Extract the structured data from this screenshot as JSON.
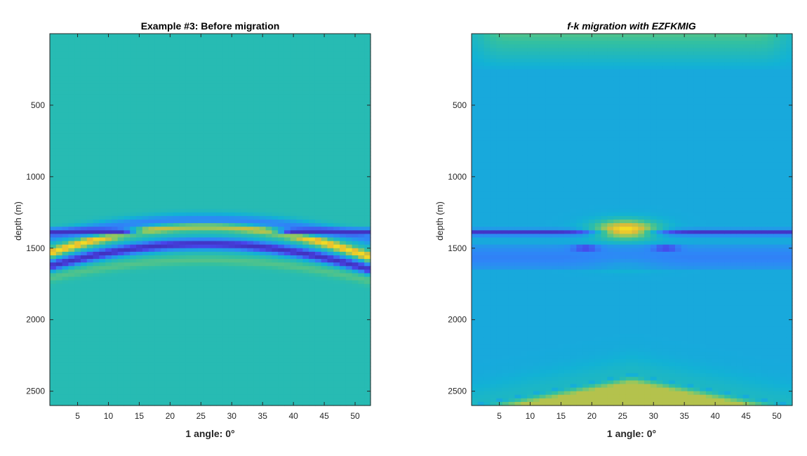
{
  "figure": {
    "background": "#ffffff",
    "colormap": "parula",
    "colormap_stops": [
      "#3e26a8",
      "#4746eb",
      "#2e87f7",
      "#12b2d5",
      "#33c0a0",
      "#8ec862",
      "#e3ba34",
      "#f9e61e"
    ]
  },
  "chart_data": [
    {
      "type": "heatmap",
      "title": "Example #3: Before migration",
      "title_style": "bold",
      "xlabel": "1 angle: 0°",
      "ylabel": "depth (m)",
      "xlim": [
        0.5,
        52.5
      ],
      "ylim": [
        2600,
        0
      ],
      "y_reversed": true,
      "xticks": [
        5,
        10,
        15,
        20,
        25,
        30,
        35,
        40,
        45,
        50
      ],
      "yticks": [
        500,
        1000,
        1500,
        2000,
        2500
      ],
      "xtick_labels": [
        "5",
        "10",
        "15",
        "20",
        "25",
        "30",
        "35",
        "40",
        "45",
        "50"
      ],
      "ytick_labels": [
        "500",
        "1000",
        "1500",
        "2000",
        "2500"
      ],
      "grid": false,
      "legend": "none",
      "background_value": 0.52,
      "features": [
        {
          "kind": "hyperbola",
          "apex_x": 25.5,
          "apex_depth": 1340,
          "edge_depth": 1550,
          "value": 0.97,
          "width_m": 22
        },
        {
          "kind": "hyperbola",
          "apex_x": 25.5,
          "apex_depth": 1470,
          "edge_depth": 1640,
          "value": 0.05,
          "width_m": 28
        },
        {
          "kind": "hyperbola",
          "apex_x": 25.5,
          "apex_depth": 1300,
          "edge_depth": 1430,
          "value": 0.28,
          "width_m": 30
        },
        {
          "kind": "hyperbola",
          "apex_x": 25.5,
          "apex_depth": 1585,
          "edge_depth": 1720,
          "value": 0.62,
          "width_m": 25
        },
        {
          "kind": "flat_band",
          "depth": 1385,
          "x_ranges": [
            [
              0.5,
              12
            ],
            [
              40,
              52.5
            ]
          ],
          "value": 0.05,
          "width_m": 16
        }
      ]
    },
    {
      "type": "heatmap",
      "title": "f-k migration with EZFKMIG",
      "title_style": "bold-italic",
      "xlabel": "1 angle: 0°",
      "ylabel": "depth (m)",
      "xlim": [
        0.5,
        52.5
      ],
      "ylim": [
        2600,
        0
      ],
      "y_reversed": true,
      "xticks": [
        5,
        10,
        15,
        20,
        25,
        30,
        35,
        40,
        45,
        50
      ],
      "yticks": [
        500,
        1000,
        1500,
        2000,
        2500
      ],
      "xtick_labels": [
        "5",
        "10",
        "15",
        "20",
        "25",
        "30",
        "35",
        "40",
        "45",
        "50"
      ],
      "ytick_labels": [
        "500",
        "1000",
        "1500",
        "2000",
        "2500"
      ],
      "grid": false,
      "legend": "none",
      "background_value": 0.4,
      "features": [
        {
          "kind": "flat_band",
          "depth": 1390,
          "x_ranges": [
            [
              0.5,
              52.5
            ]
          ],
          "value": 0.06,
          "width_m": 14
        },
        {
          "kind": "blob",
          "x": 25.5,
          "depth": 1370,
          "rx": 3.5,
          "ry_m": 45,
          "value": 0.98
        },
        {
          "kind": "blob",
          "x": 25.5,
          "depth": 1600,
          "rx": 4,
          "ry_m": 35,
          "value": 0.55
        },
        {
          "kind": "band",
          "depth_top": 1480,
          "depth_bottom": 1650,
          "value": 0.22
        },
        {
          "kind": "blob",
          "x": 19,
          "depth": 1500,
          "rx": 1.5,
          "ry_m": 12,
          "value": 0.05
        },
        {
          "kind": "blob",
          "x": 32,
          "depth": 1500,
          "rx": 1.5,
          "ry_m": 12,
          "value": 0.05
        },
        {
          "kind": "bottom_triangle",
          "apex_x": 26.5,
          "apex_depth": 2380,
          "value": 0.82
        },
        {
          "kind": "top_fade",
          "value": 0.62
        }
      ]
    }
  ]
}
